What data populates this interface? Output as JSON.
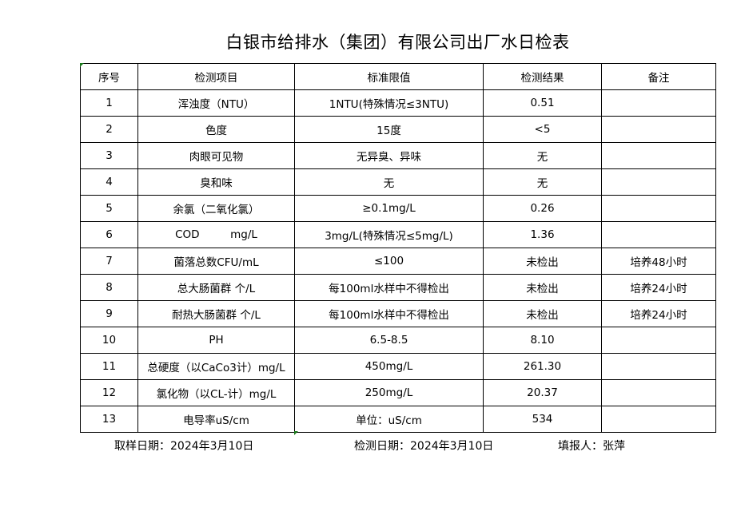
{
  "title": "白银市给排水（集团）有限公司出厂水日检表",
  "table": {
    "headers": [
      "序号",
      "检测项目",
      "标准限值",
      "检测结果",
      "备注"
    ],
    "rows": [
      [
        "1",
        "浑浊度（NTU）",
        "1NTU(特殊情况≤3NTU)",
        "0.51",
        ""
      ],
      [
        "2",
        "色度",
        "15度",
        "<5",
        ""
      ],
      [
        "3",
        "肉眼可见物",
        "无异臭、异味",
        "无",
        ""
      ],
      [
        "4",
        "臭和味",
        "无",
        "无",
        ""
      ],
      [
        "5",
        "余氯（二氧化氯）",
        "≥0.1mg/L",
        "0.26",
        ""
      ],
      [
        "6",
        "COD         mg/L",
        "3mg/L(特殊情况≤5mg/L)",
        "1.36",
        ""
      ],
      [
        "7",
        "菌落总数CFU/mL",
        "≤100",
        "未检出",
        "培养48小时"
      ],
      [
        "8",
        "总大肠菌群 个/L",
        "每100ml水样中不得检出",
        "未检出",
        "培养24小时"
      ],
      [
        "9",
        "耐热大肠菌群 个/L",
        "每100ml水样中不得检出",
        "未检出",
        "培养24小时"
      ],
      [
        "10",
        "PH",
        "6.5-8.5",
        "8.10",
        ""
      ],
      [
        "11",
        "总硬度（以CaCo3计）mg/L",
        "450mg/L",
        "261.30",
        ""
      ],
      [
        "12",
        "氯化物（以CL-计）mg/L",
        "250mg/L",
        "20.37",
        ""
      ],
      [
        "13",
        "电导率uS/cm",
        "单位：uS/cm",
        "534",
        ""
      ]
    ]
  },
  "footer": {
    "sampling_date": "取样日期：2024年3月10日",
    "test_date": "检测日期：2024年3月10日",
    "filled_by": "填报人：张萍"
  },
  "colors": {
    "cell_marker": "#1a7a1a"
  }
}
